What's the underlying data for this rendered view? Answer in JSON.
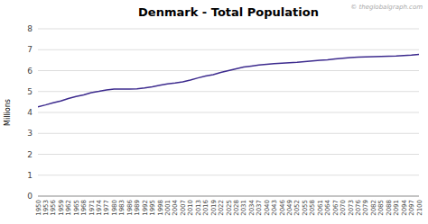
{
  "chart_data": {
    "type": "line",
    "title": "Denmark - Total Population",
    "ylabel": "Millions",
    "annotations": [
      "© theglobalgraph.com"
    ],
    "color": "#3d2b8e",
    "grid": true,
    "x": [
      1950,
      1953,
      1956,
      1959,
      1962,
      1965,
      1968,
      1971,
      1974,
      1977,
      1980,
      1983,
      1986,
      1989,
      1992,
      1995,
      1998,
      2001,
      2004,
      2007,
      2010,
      2013,
      2016,
      2019,
      2022,
      2025,
      2028,
      2031,
      2034,
      2037,
      2040,
      2043,
      2046,
      2049,
      2052,
      2055,
      2058,
      2061,
      2064,
      2067,
      2070,
      2073,
      2076,
      2079,
      2082,
      2085,
      2088,
      2091,
      2094,
      2097,
      2100
    ],
    "values": [
      4.27,
      4.36,
      4.46,
      4.55,
      4.67,
      4.76,
      4.84,
      4.95,
      5.01,
      5.08,
      5.12,
      5.12,
      5.12,
      5.13,
      5.17,
      5.23,
      5.3,
      5.37,
      5.41,
      5.46,
      5.55,
      5.65,
      5.74,
      5.81,
      5.91,
      6.0,
      6.09,
      6.17,
      6.22,
      6.27,
      6.3,
      6.33,
      6.36,
      6.38,
      6.4,
      6.43,
      6.46,
      6.49,
      6.52,
      6.56,
      6.59,
      6.62,
      6.64,
      6.66,
      6.67,
      6.68,
      6.69,
      6.7,
      6.72,
      6.74,
      6.77
    ],
    "xlim": [
      1950,
      2100
    ],
    "xticks": [
      1950,
      1953,
      1956,
      1959,
      1962,
      1965,
      1968,
      1971,
      1974,
      1977,
      1980,
      1983,
      1986,
      1989,
      1992,
      1995,
      1998,
      2001,
      2004,
      2007,
      2010,
      2013,
      2016,
      2019,
      2022,
      2025,
      2028,
      2031,
      2034,
      2037,
      2040,
      2043,
      2046,
      2049,
      2052,
      2055,
      2058,
      2061,
      2064,
      2067,
      2070,
      2073,
      2076,
      2079,
      2082,
      2085,
      2088,
      2091,
      2094,
      2097,
      2100
    ],
    "ylim": [
      0,
      8
    ],
    "yticks": [
      0,
      1,
      2,
      3,
      4,
      5,
      6,
      7,
      8
    ]
  }
}
